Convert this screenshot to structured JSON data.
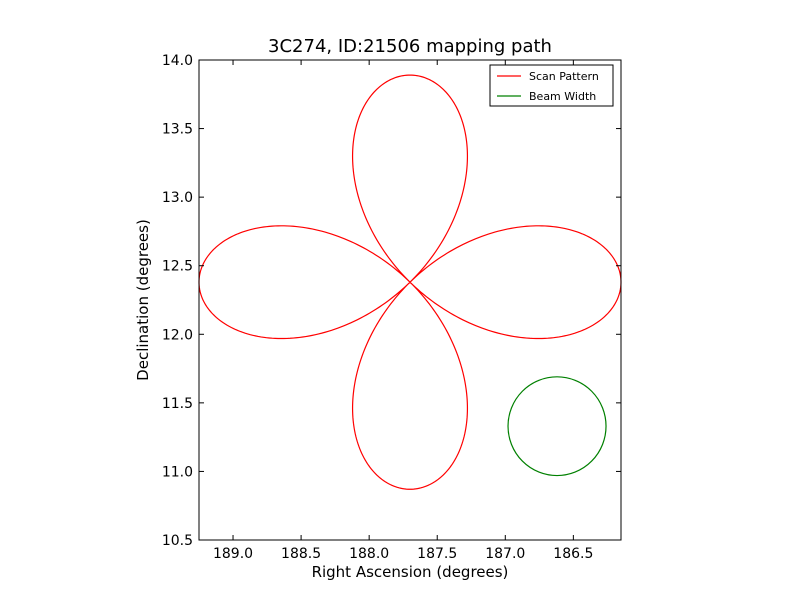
{
  "chart_data": {
    "type": "line",
    "title": "3C274, ID:21506 mapping path",
    "xlabel": "Right Ascension (degrees)",
    "ylabel": "Declination (degrees)",
    "xlim": [
      189.25,
      186.15
    ],
    "ylim": [
      10.5,
      14.0
    ],
    "x_inverted": true,
    "xticks": [
      189.0,
      188.5,
      188.0,
      187.5,
      187.0,
      186.5
    ],
    "xtick_labels": [
      "189.0",
      "188.5",
      "188.0",
      "187.5",
      "187.0",
      "186.5"
    ],
    "yticks": [
      10.5,
      11.0,
      11.5,
      12.0,
      12.5,
      13.0,
      13.5,
      14.0
    ],
    "ytick_labels": [
      "10.5",
      "11.0",
      "11.5",
      "12.0",
      "12.5",
      "13.0",
      "13.5",
      "14.0"
    ],
    "grid": false,
    "legend_position": "top-right",
    "series": [
      {
        "name": "Scan Pattern",
        "color": "#ff0000",
        "shape": "four-petal rose scan, centered near RA 187.70, Dec 12.38",
        "center": [
          187.7,
          12.38
        ],
        "petal_tips": {
          "north": [
            187.7,
            13.89
          ],
          "south": [
            187.7,
            10.89
          ],
          "east": [
            189.25,
            12.38
          ],
          "west": [
            186.15,
            12.38
          ]
        }
      },
      {
        "name": "Beam Width",
        "color": "#008000",
        "shape": "circle",
        "center": [
          186.62,
          11.33
        ],
        "radius_deg": 0.36
      }
    ]
  }
}
